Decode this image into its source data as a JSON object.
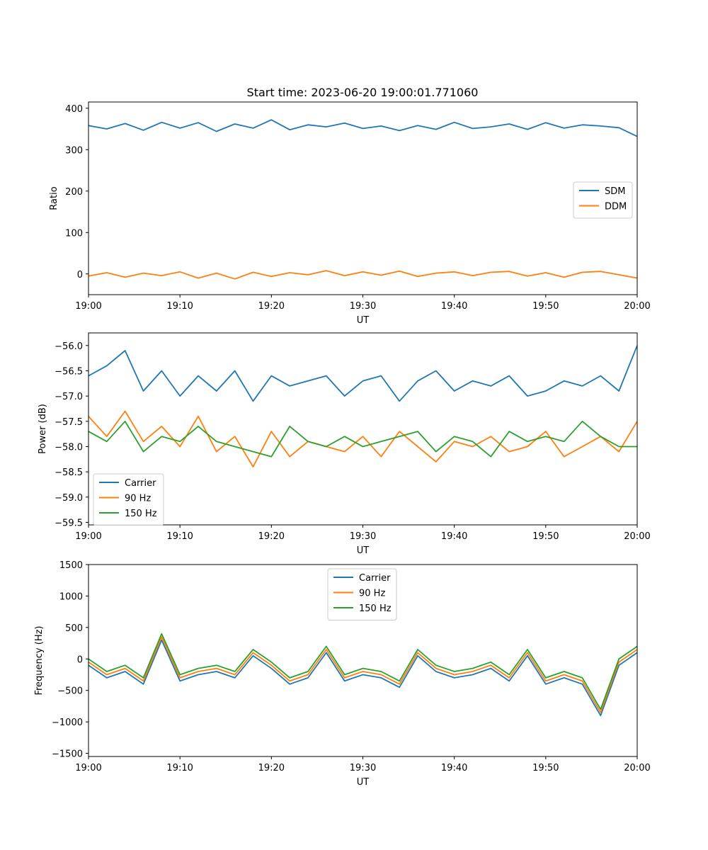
{
  "figure": {
    "title": "Start time: 2023-06-20 19:00:01.771060"
  },
  "chart_data": [
    {
      "type": "line",
      "xlabel": "UT",
      "ylabel": "Ratio",
      "xlim": [
        "19:00",
        "20:00"
      ],
      "ylim": [
        -50,
        415
      ],
      "xticks": [
        "19:00",
        "19:10",
        "19:20",
        "19:30",
        "19:40",
        "19:50",
        "20:00"
      ],
      "yticks": [
        0,
        100,
        200,
        300,
        400
      ],
      "ytick_labels": [
        "0",
        "100",
        "200",
        "300",
        "400"
      ],
      "legend": "center-right",
      "grid": false,
      "x_minutes": [
        0,
        2,
        4,
        6,
        8,
        10,
        12,
        14,
        16,
        18,
        20,
        22,
        24,
        26,
        28,
        30,
        32,
        34,
        36,
        38,
        40,
        42,
        44,
        46,
        48,
        50,
        52,
        54,
        56,
        58,
        60
      ],
      "series": [
        {
          "name": "SDM",
          "color": "#1f77b4",
          "values": [
            358,
            350,
            363,
            347,
            366,
            352,
            365,
            344,
            362,
            352,
            372,
            348,
            360,
            355,
            364,
            351,
            357,
            346,
            358,
            349,
            366,
            351,
            355,
            362,
            349,
            365,
            352,
            360,
            357,
            353,
            332
          ]
        },
        {
          "name": "DDM",
          "color": "#ff7f0e",
          "values": [
            -5,
            3,
            -8,
            2,
            -4,
            5,
            -10,
            2,
            -12,
            4,
            -6,
            3,
            -2,
            8,
            -4,
            5,
            -3,
            7,
            -6,
            2,
            5,
            -4,
            4,
            6,
            -5,
            3,
            -8,
            4,
            6,
            -2,
            -10
          ]
        }
      ]
    },
    {
      "type": "line",
      "xlabel": "UT",
      "ylabel": "Power (dB)",
      "xlim": [
        "19:00",
        "20:00"
      ],
      "ylim": [
        -59.55,
        -55.75
      ],
      "xticks": [
        "19:00",
        "19:10",
        "19:20",
        "19:30",
        "19:40",
        "19:50",
        "20:00"
      ],
      "yticks": [
        -59.5,
        -59.0,
        -58.5,
        -58.0,
        -57.5,
        -57.0,
        -56.5,
        -56.0
      ],
      "ytick_labels": [
        "−59.5",
        "−59.0",
        "−58.5",
        "−58.0",
        "−57.5",
        "−57.0",
        "−56.5",
        "−56.0"
      ],
      "legend": "lower-left",
      "grid": false,
      "x_minutes": [
        0,
        2,
        4,
        6,
        8,
        10,
        12,
        14,
        16,
        18,
        20,
        22,
        24,
        26,
        28,
        30,
        32,
        34,
        36,
        38,
        40,
        42,
        44,
        46,
        48,
        50,
        52,
        54,
        56,
        58,
        60
      ],
      "series": [
        {
          "name": "Carrier",
          "color": "#1f77b4",
          "values": [
            -56.6,
            -56.4,
            -56.1,
            -56.9,
            -56.5,
            -57.0,
            -56.6,
            -56.9,
            -56.5,
            -57.1,
            -56.6,
            -56.8,
            -56.7,
            -56.6,
            -57.0,
            -56.7,
            -56.6,
            -57.1,
            -56.7,
            -56.5,
            -56.9,
            -56.7,
            -56.8,
            -56.6,
            -57.0,
            -56.9,
            -56.7,
            -56.8,
            -56.6,
            -56.9,
            -56.0
          ]
        },
        {
          "name": "90 Hz",
          "color": "#ff7f0e",
          "values": [
            -57.4,
            -57.8,
            -57.3,
            -57.9,
            -57.6,
            -58.0,
            -57.4,
            -58.1,
            -57.8,
            -58.4,
            -57.7,
            -58.2,
            -57.9,
            -58.0,
            -58.1,
            -57.8,
            -58.2,
            -57.7,
            -58.0,
            -58.3,
            -57.9,
            -58.0,
            -57.8,
            -58.1,
            -58.0,
            -57.7,
            -58.2,
            -58.0,
            -57.8,
            -58.1,
            -57.5
          ]
        },
        {
          "name": "150 Hz",
          "color": "#2ca02c",
          "values": [
            -57.7,
            -57.9,
            -57.5,
            -58.1,
            -57.8,
            -57.9,
            -57.6,
            -57.9,
            -58.0,
            -58.1,
            -58.2,
            -57.6,
            -57.9,
            -58.0,
            -57.8,
            -58.0,
            -57.9,
            -57.8,
            -57.7,
            -58.1,
            -57.8,
            -57.9,
            -58.2,
            -57.7,
            -57.9,
            -57.8,
            -57.9,
            -57.5,
            -57.8,
            -58.0,
            -58.0
          ]
        }
      ]
    },
    {
      "type": "line",
      "xlabel": "UT",
      "ylabel": "Frequency (Hz)",
      "xlim": [
        "19:00",
        "20:00"
      ],
      "ylim": [
        -1550,
        1500
      ],
      "xticks": [
        "19:00",
        "19:10",
        "19:20",
        "19:30",
        "19:40",
        "19:50",
        "20:00"
      ],
      "yticks": [
        -1500,
        -1000,
        -500,
        0,
        500,
        1000,
        1500
      ],
      "ytick_labels": [
        "−1500",
        "−1000",
        "−500",
        "0",
        "500",
        "1000",
        "1500"
      ],
      "legend": "upper-center",
      "grid": false,
      "x_minutes": [
        0,
        2,
        4,
        6,
        8,
        10,
        12,
        14,
        16,
        18,
        20,
        22,
        24,
        26,
        28,
        30,
        32,
        34,
        36,
        38,
        40,
        42,
        44,
        46,
        48,
        50,
        52,
        54,
        56,
        58,
        60
      ],
      "series": [
        {
          "name": "Carrier",
          "color": "#1f77b4",
          "values": [
            -100,
            -300,
            -200,
            -400,
            300,
            -350,
            -250,
            -200,
            -300,
            50,
            -150,
            -400,
            -300,
            100,
            -350,
            -250,
            -300,
            -450,
            50,
            -200,
            -300,
            -250,
            -150,
            -350,
            50,
            -400,
            -300,
            -400,
            -900,
            -100,
            100
          ]
        },
        {
          "name": "90 Hz",
          "color": "#ff7f0e",
          "values": [
            -50,
            -250,
            -150,
            -350,
            350,
            -300,
            -200,
            -150,
            -250,
            100,
            -100,
            -350,
            -250,
            150,
            -300,
            -200,
            -250,
            -400,
            100,
            -150,
            -250,
            -200,
            -100,
            -300,
            100,
            -350,
            -250,
            -350,
            -850,
            -50,
            150
          ]
        },
        {
          "name": "150 Hz",
          "color": "#2ca02c",
          "values": [
            0,
            -200,
            -100,
            -300,
            400,
            -250,
            -150,
            -100,
            -200,
            150,
            -50,
            -300,
            -200,
            200,
            -250,
            -150,
            -200,
            -350,
            150,
            -100,
            -200,
            -150,
            -50,
            -250,
            150,
            -300,
            -200,
            -300,
            -800,
            0,
            200
          ]
        }
      ]
    }
  ]
}
